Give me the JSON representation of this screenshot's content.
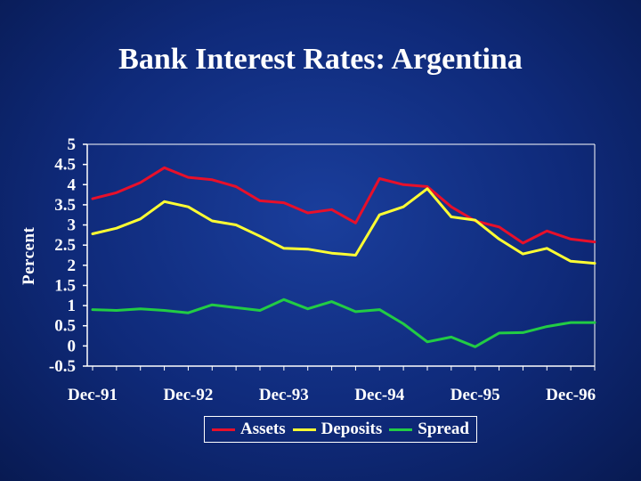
{
  "chart_data": {
    "type": "line",
    "title": "Bank Interest Rates: Argentina",
    "ylabel": "Percent",
    "xlabel": "",
    "ylim": [
      -0.5,
      5
    ],
    "yticks": [
      -0.5,
      0,
      0.5,
      1,
      1.5,
      2,
      2.5,
      3,
      3.5,
      4,
      4.5,
      5
    ],
    "ytick_labels": [
      "-0.5",
      "0",
      "0.5",
      "1",
      "1.5",
      "2",
      "2.5",
      "3",
      "3.5",
      "4",
      "4.5",
      "5"
    ],
    "x_tick_labels": [
      "Dec-91",
      "Dec-92",
      "Dec-93",
      "Dec-94",
      "Dec-95",
      "Dec-96"
    ],
    "x_tick_indices": [
      0,
      4,
      8,
      12,
      16,
      20
    ],
    "grid": false,
    "legend": "bottom",
    "series": [
      {
        "name": "Assets",
        "color": "#e8102a",
        "values": [
          3.65,
          3.8,
          4.05,
          4.42,
          4.18,
          4.12,
          3.95,
          3.6,
          3.55,
          3.3,
          3.38,
          3.05,
          4.15,
          4.0,
          3.95,
          3.45,
          3.1,
          2.95,
          2.55,
          2.85,
          2.65,
          2.58
        ]
      },
      {
        "name": "Deposits",
        "color": "#ffff33",
        "values": [
          2.78,
          2.92,
          3.15,
          3.58,
          3.45,
          3.1,
          3.0,
          2.72,
          2.42,
          2.4,
          2.3,
          2.25,
          3.25,
          3.45,
          3.9,
          3.2,
          3.12,
          2.65,
          2.28,
          2.42,
          2.1,
          2.05
        ]
      },
      {
        "name": "Spread",
        "color": "#22cc44",
        "values": [
          0.9,
          0.88,
          0.92,
          0.88,
          0.82,
          1.02,
          0.95,
          0.88,
          1.15,
          0.92,
          1.1,
          0.85,
          0.9,
          0.55,
          0.1,
          0.22,
          -0.02,
          0.32,
          0.33,
          0.48,
          0.58,
          0.58
        ]
      }
    ]
  }
}
